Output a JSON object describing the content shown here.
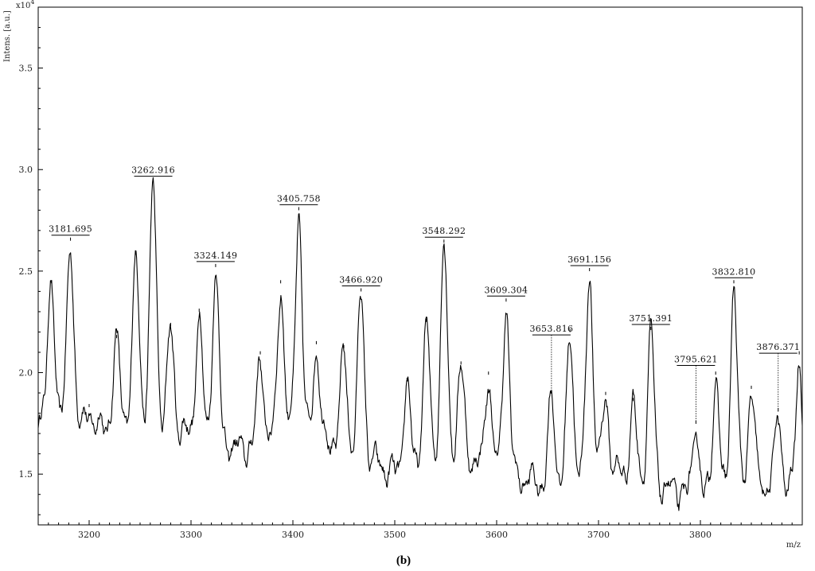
{
  "chart_data": {
    "type": "line",
    "title": "",
    "ylabel": "Intens. [a.u.]",
    "y_multiplier_label": "x10",
    "y_multiplier_exponent": "4",
    "xlabel": "m/z",
    "xlim": [
      3150,
      3900
    ],
    "ylim": [
      1.25,
      3.8
    ],
    "x_ticks": [
      3200,
      3300,
      3400,
      3500,
      3600,
      3700,
      3800
    ],
    "y_ticks": [
      1.5,
      2.0,
      2.5,
      3.0,
      3.5
    ],
    "y_tick_labels": [
      "1.5",
      "2.0",
      "2.5",
      "3.0",
      "3.5"
    ],
    "grid": false,
    "line_color": "#000000",
    "baseline": [
      [
        3150,
        1.82
      ],
      [
        3160,
        1.83
      ],
      [
        3200,
        1.72
      ],
      [
        3250,
        1.78
      ],
      [
        3300,
        1.7
      ],
      [
        3350,
        1.62
      ],
      [
        3400,
        1.72
      ],
      [
        3450,
        1.64
      ],
      [
        3500,
        1.5
      ],
      [
        3550,
        1.62
      ],
      [
        3600,
        1.52
      ],
      [
        3650,
        1.44
      ],
      [
        3700,
        1.54
      ],
      [
        3750,
        1.46
      ],
      [
        3800,
        1.38
      ],
      [
        3850,
        1.46
      ],
      [
        3900,
        1.4
      ]
    ],
    "peaks": [
      {
        "mz": 3163.0,
        "intensity": 2.42,
        "labeled": false
      },
      {
        "mz": 3181.695,
        "intensity": 2.63,
        "labeled": true,
        "label": "3181.695"
      },
      {
        "mz": 3200.0,
        "intensity": 1.81,
        "labeled": false
      },
      {
        "mz": 3227.0,
        "intensity": 2.15,
        "labeled": false
      },
      {
        "mz": 3246.0,
        "intensity": 2.56,
        "labeled": false
      },
      {
        "mz": 3262.916,
        "intensity": 2.92,
        "labeled": true,
        "label": "3262.916"
      },
      {
        "mz": 3280.0,
        "intensity": 2.21,
        "labeled": false
      },
      {
        "mz": 3308.0,
        "intensity": 2.28,
        "labeled": false
      },
      {
        "mz": 3324.149,
        "intensity": 2.5,
        "labeled": true,
        "label": "3324.149"
      },
      {
        "mz": 3368.0,
        "intensity": 2.07,
        "labeled": false
      },
      {
        "mz": 3388.0,
        "intensity": 2.42,
        "labeled": false
      },
      {
        "mz": 3405.758,
        "intensity": 2.78,
        "labeled": true,
        "label": "3405.758"
      },
      {
        "mz": 3423.0,
        "intensity": 2.12,
        "labeled": false
      },
      {
        "mz": 3450.0,
        "intensity": 2.1,
        "labeled": false
      },
      {
        "mz": 3466.92,
        "intensity": 2.38,
        "labeled": true,
        "label": "3466.920"
      },
      {
        "mz": 3512.0,
        "intensity": 1.94,
        "labeled": false
      },
      {
        "mz": 3531.0,
        "intensity": 2.23,
        "labeled": false
      },
      {
        "mz": 3548.292,
        "intensity": 2.62,
        "labeled": true,
        "label": "3548.292"
      },
      {
        "mz": 3565.0,
        "intensity": 2.02,
        "labeled": false
      },
      {
        "mz": 3592.0,
        "intensity": 1.97,
        "labeled": false
      },
      {
        "mz": 3609.304,
        "intensity": 2.33,
        "labeled": true,
        "label": "3609.304"
      },
      {
        "mz": 3653.816,
        "intensity": 1.88,
        "labeled": true,
        "label": "3653.816"
      },
      {
        "mz": 3672.0,
        "intensity": 2.18,
        "labeled": false
      },
      {
        "mz": 3691.156,
        "intensity": 2.48,
        "labeled": true,
        "label": "3691.156"
      },
      {
        "mz": 3707.0,
        "intensity": 1.87,
        "labeled": false
      },
      {
        "mz": 3734.0,
        "intensity": 1.84,
        "labeled": false
      },
      {
        "mz": 3751.391,
        "intensity": 2.19,
        "labeled": true,
        "label": "3751.391"
      },
      {
        "mz": 3795.621,
        "intensity": 1.73,
        "labeled": true,
        "label": "3795.621"
      },
      {
        "mz": 3815.0,
        "intensity": 1.97,
        "labeled": false
      },
      {
        "mz": 3832.81,
        "intensity": 2.42,
        "labeled": true,
        "label": "3832.810"
      },
      {
        "mz": 3850.0,
        "intensity": 1.9,
        "labeled": false
      },
      {
        "mz": 3876.371,
        "intensity": 1.79,
        "labeled": true,
        "label": "3876.371"
      },
      {
        "mz": 3897.0,
        "intensity": 2.07,
        "labeled": false
      }
    ]
  },
  "caption": "(b)"
}
